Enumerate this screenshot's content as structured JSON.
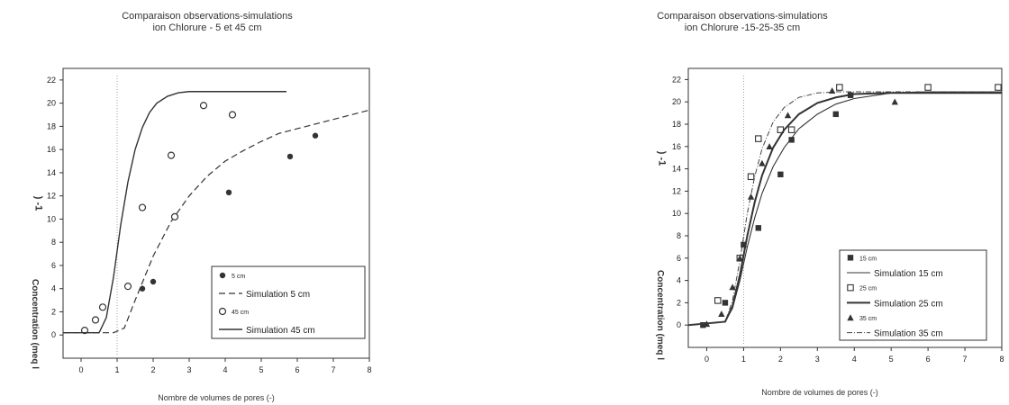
{
  "chart_data": [
    {
      "type": "scatter",
      "title_line1": "Comparaison observations-simulations",
      "title_line2": "ion Chlorure - 5 et 45 cm",
      "xlabel": "Nombre de volumes de pores (-)",
      "ylabel": "Concentration (meq l",
      "ylabel_sup": ") -1",
      "xlim": [
        -0.5,
        8
      ],
      "ylim": [
        -2,
        23
      ],
      "xticks": [
        0,
        1,
        2,
        3,
        4,
        5,
        6,
        7,
        8
      ],
      "yticks": [
        0,
        2,
        4,
        6,
        8,
        10,
        12,
        14,
        16,
        18,
        20,
        22
      ],
      "grid": false,
      "legend_position": "bottom-right",
      "series": [
        {
          "name": "5 cm",
          "kind": "points",
          "marker": "filled-circle",
          "x": [
            1.7,
            2.0,
            4.1,
            5.8,
            6.5
          ],
          "y": [
            4.0,
            4.6,
            12.3,
            15.4,
            17.2
          ]
        },
        {
          "name": "Simulation 5 cm",
          "kind": "line",
          "style": "dashed",
          "x": [
            -0.5,
            0.9,
            1.2,
            1.5,
            2.0,
            2.5,
            3.0,
            3.5,
            4.0,
            4.5,
            5.0,
            5.5,
            6.0,
            6.5,
            7.0,
            7.5,
            8.0
          ],
          "y": [
            0.2,
            0.2,
            0.6,
            3.0,
            6.8,
            9.8,
            12.0,
            13.7,
            15.0,
            15.9,
            16.7,
            17.4,
            17.8,
            18.2,
            18.6,
            19.0,
            19.4
          ]
        },
        {
          "name": "45 cm",
          "kind": "points",
          "marker": "open-circle",
          "x": [
            0.1,
            0.4,
            0.6,
            1.3,
            1.7,
            2.5,
            2.6,
            3.4,
            4.2
          ],
          "y": [
            0.4,
            1.3,
            2.4,
            4.2,
            11.0,
            15.5,
            10.2,
            19.8,
            19.0
          ]
        },
        {
          "name": "Simulation 45 cm",
          "kind": "line",
          "style": "solid",
          "x": [
            -0.5,
            0.5,
            0.7,
            0.9,
            1.1,
            1.3,
            1.5,
            1.7,
            1.9,
            2.1,
            2.4,
            2.7,
            3.0,
            3.5,
            4.0,
            4.5,
            5.0,
            5.5,
            5.7
          ],
          "y": [
            0.2,
            0.2,
            1.5,
            5.0,
            9.5,
            13.2,
            16.0,
            17.9,
            19.2,
            20.0,
            20.6,
            20.9,
            21.0,
            21.0,
            21.0,
            21.0,
            21.0,
            21.0,
            21.0
          ]
        }
      ]
    },
    {
      "type": "scatter",
      "title_line1": "Comparaison observations-simulations",
      "title_line2": "ion Chlorure -15-25-35 cm",
      "xlabel": "Nombre de volumes de pores (-)",
      "ylabel": "Concentration (meq l",
      "ylabel_sup": ") -1",
      "xlim": [
        -0.5,
        8
      ],
      "ylim": [
        -2,
        23
      ],
      "xticks": [
        0,
        1,
        2,
        3,
        4,
        5,
        6,
        7,
        8
      ],
      "yticks": [
        0,
        2,
        4,
        6,
        8,
        10,
        12,
        14,
        16,
        18,
        20,
        22
      ],
      "grid": false,
      "legend_position": "bottom-right",
      "series": [
        {
          "name": "15 cm",
          "kind": "points",
          "marker": "filled-square",
          "x": [
            -0.1,
            0.5,
            1.0,
            1.4,
            2.0,
            2.3,
            3.5,
            3.9
          ],
          "y": [
            0.0,
            2.0,
            7.2,
            8.7,
            13.5,
            16.6,
            18.9,
            20.6
          ]
        },
        {
          "name": "Simulation 15 cm",
          "kind": "line",
          "style": "solid-thin",
          "x": [
            -0.5,
            0.5,
            0.7,
            0.9,
            1.1,
            1.3,
            1.5,
            1.8,
            2.1,
            2.5,
            3.0,
            3.5,
            4.0,
            5.0,
            6.0,
            7.0,
            8.0
          ],
          "y": [
            0.0,
            0.3,
            1.5,
            4.0,
            7.0,
            9.6,
            11.8,
            14.2,
            15.9,
            17.6,
            18.9,
            19.8,
            20.3,
            20.8,
            20.9,
            20.9,
            20.9
          ]
        },
        {
          "name": "25 cm",
          "kind": "points",
          "marker": "open-square",
          "x": [
            0.3,
            0.9,
            1.2,
            1.4,
            2.0,
            2.3,
            3.6,
            6.0,
            7.9
          ],
          "y": [
            2.2,
            6.0,
            13.3,
            16.7,
            17.5,
            17.5,
            21.3,
            21.3,
            21.3
          ]
        },
        {
          "name": "Simulation 25 cm",
          "kind": "line",
          "style": "solid-thick",
          "x": [
            -0.5,
            0.5,
            0.7,
            0.9,
            1.1,
            1.3,
            1.5,
            1.8,
            2.1,
            2.5,
            3.0,
            3.5,
            4.0,
            5.0,
            6.0,
            7.0,
            8.0
          ],
          "y": [
            0.0,
            0.3,
            1.7,
            4.5,
            8.0,
            11.0,
            13.4,
            15.9,
            17.5,
            18.9,
            19.9,
            20.4,
            20.7,
            20.8,
            20.8,
            20.8,
            20.8
          ]
        },
        {
          "name": "35 cm",
          "kind": "points",
          "marker": "filled-triangle",
          "x": [
            0.0,
            0.4,
            0.7,
            0.9,
            1.2,
            1.5,
            1.7,
            2.2,
            3.4,
            5.1
          ],
          "y": [
            0.1,
            1.0,
            3.4,
            6.0,
            11.5,
            14.5,
            16.0,
            18.8,
            21.0,
            20.0
          ]
        },
        {
          "name": "Simulation 35 cm",
          "kind": "line",
          "style": "dash-dot",
          "x": [
            -0.5,
            0.5,
            0.7,
            0.9,
            1.1,
            1.3,
            1.5,
            1.8,
            2.1,
            2.5,
            3.0,
            3.5,
            4.0,
            5.0,
            6.0,
            7.0,
            8.0
          ],
          "y": [
            0.0,
            0.3,
            2.2,
            5.8,
            10.0,
            13.3,
            15.8,
            18.2,
            19.5,
            20.4,
            20.8,
            20.9,
            20.9,
            20.9,
            20.9,
            20.9,
            20.9
          ]
        }
      ]
    }
  ]
}
